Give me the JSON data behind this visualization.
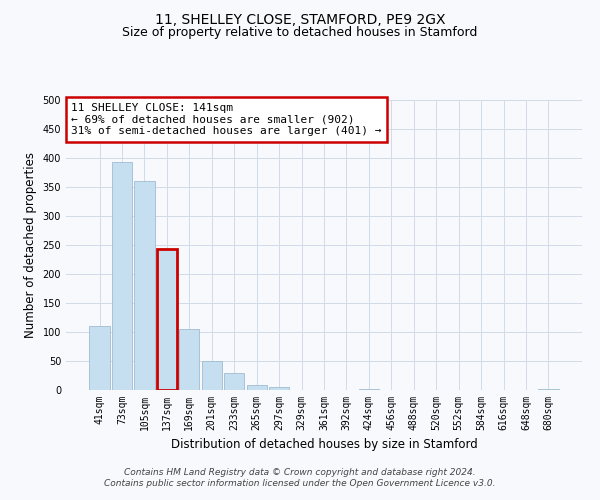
{
  "title": "11, SHELLEY CLOSE, STAMFORD, PE9 2GX",
  "subtitle": "Size of property relative to detached houses in Stamford",
  "xlabel": "Distribution of detached houses by size in Stamford",
  "ylabel": "Number of detached properties",
  "bin_labels": [
    "41sqm",
    "73sqm",
    "105sqm",
    "137sqm",
    "169sqm",
    "201sqm",
    "233sqm",
    "265sqm",
    "297sqm",
    "329sqm",
    "361sqm",
    "392sqm",
    "424sqm",
    "456sqm",
    "488sqm",
    "520sqm",
    "552sqm",
    "584sqm",
    "616sqm",
    "648sqm",
    "680sqm"
  ],
  "bar_values": [
    111,
    393,
    360,
    243,
    105,
    50,
    30,
    8,
    5,
    0,
    0,
    0,
    2,
    0,
    0,
    0,
    0,
    0,
    0,
    0,
    2
  ],
  "bar_color": "#c6dff0",
  "bar_edge_color": "#a0bcd0",
  "highlight_bar_index": 3,
  "highlight_edge_color": "#cc0000",
  "annotation_box_text": "11 SHELLEY CLOSE: 141sqm\n← 69% of detached houses are smaller (902)\n31% of semi-detached houses are larger (401) →",
  "annotation_box_color": "white",
  "annotation_box_edge_color": "#cc0000",
  "ylim": [
    0,
    500
  ],
  "yticks": [
    0,
    50,
    100,
    150,
    200,
    250,
    300,
    350,
    400,
    450,
    500
  ],
  "grid_color": "#d0dce8",
  "background_color": "#f7f9fc",
  "plot_bg_color": "#f7f9fc",
  "footer_line1": "Contains HM Land Registry data © Crown copyright and database right 2024.",
  "footer_line2": "Contains public sector information licensed under the Open Government Licence v3.0.",
  "title_fontsize": 10,
  "subtitle_fontsize": 9,
  "axis_label_fontsize": 8.5,
  "tick_fontsize": 7,
  "annotation_fontsize": 8,
  "footer_fontsize": 6.5
}
